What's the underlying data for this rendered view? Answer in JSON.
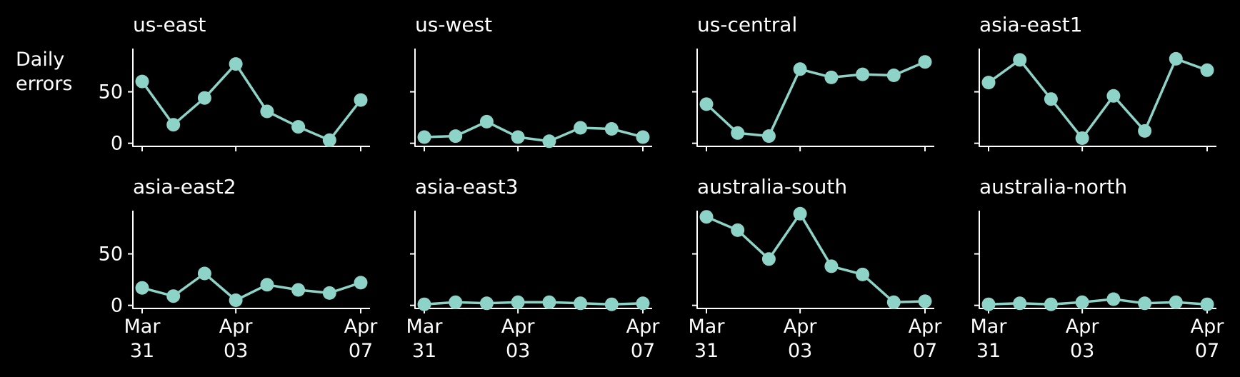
{
  "ylabel": [
    "Daily",
    "errors"
  ],
  "colors": {
    "background": "#000000",
    "axis": "#ffffff",
    "series": "#8dd3c7"
  },
  "chart_data": {
    "type": "line",
    "dates": [
      "2024-03-31",
      "2024-04-01",
      "2024-04-02",
      "2024-04-03",
      "2024-04-04",
      "2024-04-05",
      "2024-04-06",
      "2024-04-07"
    ],
    "ylim": [
      -3,
      92
    ],
    "y_ticks": [
      0,
      50
    ],
    "y_tick_labels": [
      "0",
      "50"
    ],
    "x_ticks": [
      {
        "date": "2024-03-31",
        "lines": [
          "Mar",
          "31"
        ]
      },
      {
        "date": "2024-04-03",
        "lines": [
          "Apr",
          "03"
        ]
      },
      {
        "date": "2024-04-07",
        "lines": [
          "Apr",
          "07"
        ]
      }
    ],
    "grid": false,
    "sharey": true,
    "panels": [
      {
        "title": "us-east",
        "values": [
          60,
          18,
          44,
          77,
          31,
          16,
          3,
          42
        ]
      },
      {
        "title": "us-west",
        "values": [
          6,
          7,
          21,
          6,
          2,
          15,
          14,
          6
        ]
      },
      {
        "title": "us-central",
        "values": [
          38,
          10,
          7,
          72,
          64,
          67,
          66,
          79
        ]
      },
      {
        "title": "asia-east1",
        "values": [
          59,
          81,
          43,
          5,
          46,
          12,
          82,
          71
        ]
      },
      {
        "title": "asia-east2",
        "values": [
          17,
          9,
          31,
          5,
          20,
          15,
          12,
          22
        ]
      },
      {
        "title": "asia-east3",
        "values": [
          1,
          3,
          2,
          3,
          3,
          2,
          1,
          2
        ]
      },
      {
        "title": "australia-south",
        "values": [
          86,
          73,
          45,
          89,
          38,
          30,
          3,
          4
        ]
      },
      {
        "title": "australia-north",
        "values": [
          1,
          2,
          1,
          3,
          6,
          2,
          3,
          1
        ]
      }
    ]
  }
}
